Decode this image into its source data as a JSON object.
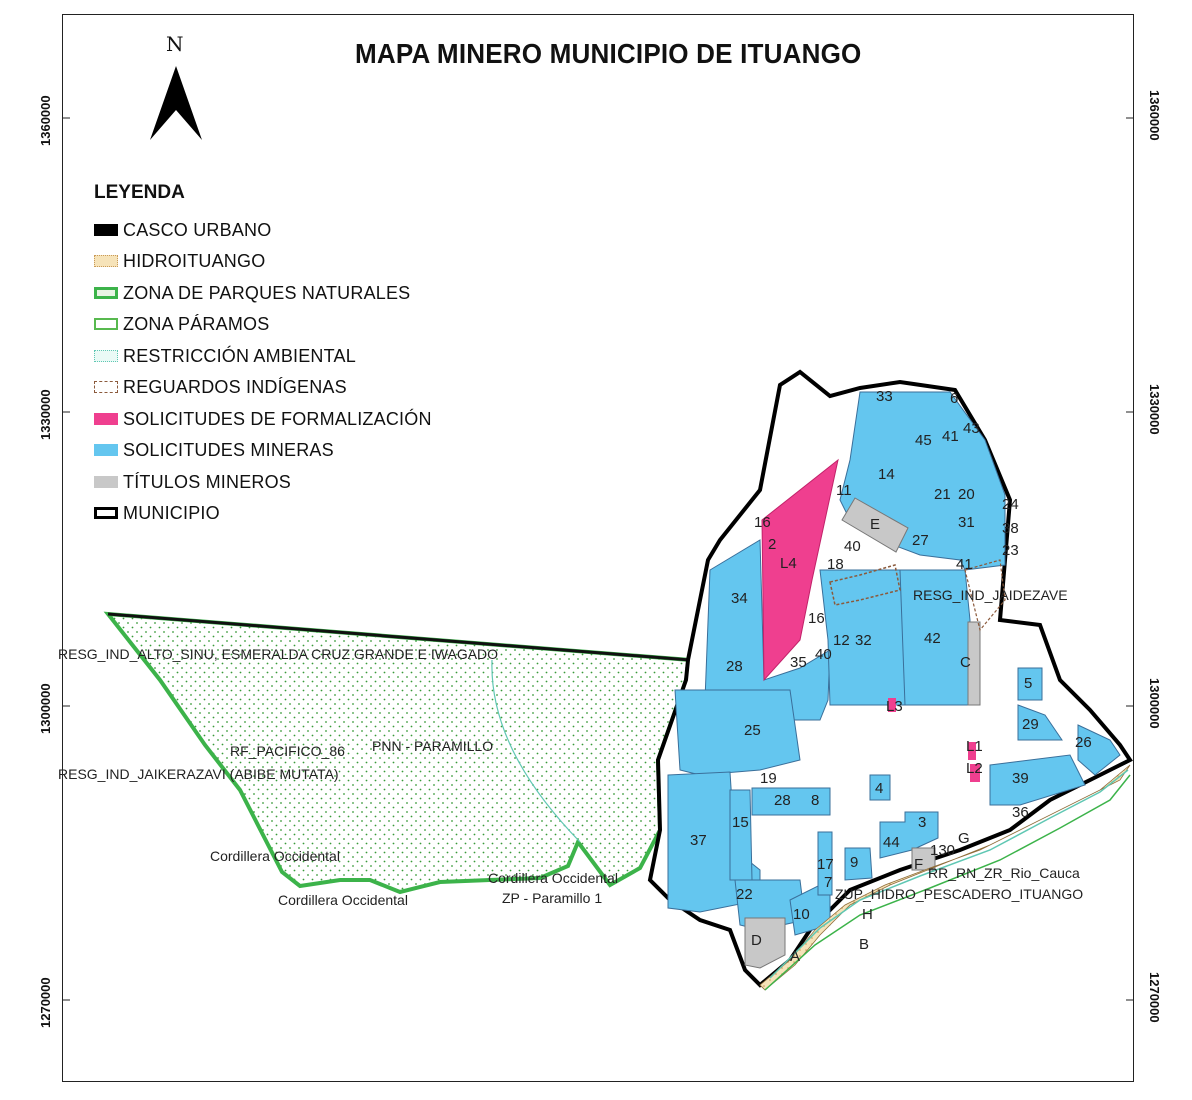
{
  "title": "MAPA MINERO MUNICIPIO DE ITUANGO",
  "north_arrow": {
    "label": "N",
    "icon": "north-arrow-icon"
  },
  "y_axis_ticks": [
    "1360000",
    "1330000",
    "1300000",
    "1270000"
  ],
  "legend": {
    "title": "LEYENDA",
    "items": [
      {
        "label": "CASCO URBANO",
        "color": "#000000"
      },
      {
        "label": "HIDROITUANGO",
        "color": "#f6e7c4"
      },
      {
        "label": "ZONA DE PARQUES NATURALES",
        "color": "#3cb34a"
      },
      {
        "label": "ZONA PÁRAMOS",
        "color": "#58b94f"
      },
      {
        "label": "RESTRICCIÓN AMBIENTAL",
        "color": "#5fc7b3"
      },
      {
        "label": "REGUARDOS INDÍGENAS",
        "color": "#8b5a3c"
      },
      {
        "label": "SOLICITUDES DE FORMALIZACIÓN",
        "color": "#ef3f8f"
      },
      {
        "label": "SOLICITUDES MINERAS",
        "color": "#64c6ef"
      },
      {
        "label": "TÍTULOS MINEROS",
        "color": "#c8c8c8"
      },
      {
        "label": "MUNICIPIO",
        "color": "#000000"
      }
    ]
  },
  "place_labels": {
    "resg_alto_sinu": "RESG_IND_ALTO_SINU, ESMERALDA CRUZ GRANDE E IWAGADO",
    "rf_pacifico": "RF_PACIFICO_86",
    "pnn_paramillo": "PNN - PARAMILLO",
    "resg_jaikerazavi": "RESG_IND_JAIKERAZAVI (ABIBE MUTATA)",
    "cordillera_1": "Cordillera Occidental",
    "cordillera_2": "Cordillera Occidental",
    "cordillera_3": "Cordillera Occidental",
    "zp_paramillo": "ZP - Paramillo 1",
    "resg_jaidezave": "RESG_IND_JAIDEZAVE",
    "rr_rio_cauca": "RR_RN_ZR_Rio_Cauca",
    "zup_hidro": "ZUP_HIDRO_PESCADERO_ITUANGO"
  },
  "parcel_labels": [
    "33",
    "6",
    "45",
    "43",
    "41",
    "14",
    "21",
    "20",
    "24",
    "38",
    "23",
    "11",
    "E",
    "31",
    "27",
    "41",
    "40",
    "16",
    "2",
    "L4",
    "18",
    "34",
    "16",
    "12",
    "32",
    "42",
    "28",
    "35",
    "40",
    "C",
    "5",
    "L3",
    "29",
    "25",
    "26",
    "L1",
    "L2",
    "19",
    "4",
    "39",
    "28",
    "8",
    "36",
    "3",
    "15",
    "37",
    "44",
    "G",
    "130",
    "F",
    "17",
    "9",
    "7",
    "22",
    "H",
    "10",
    "D",
    "A",
    "B"
  ]
}
